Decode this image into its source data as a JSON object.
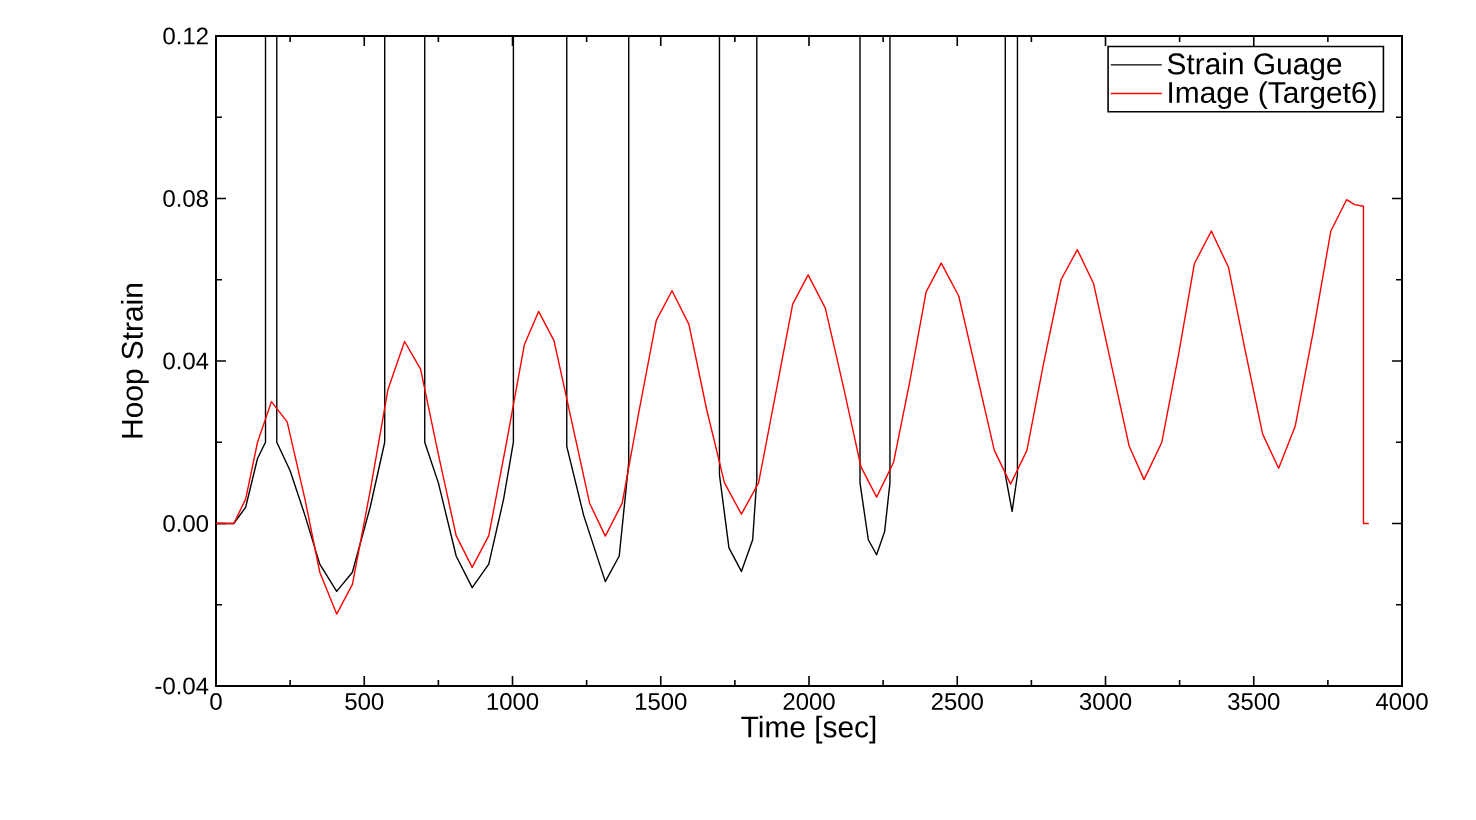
{
  "chart_data": {
    "type": "line",
    "xlabel": "Time [sec]",
    "ylabel": "Hoop Strain",
    "xlim": [
      0,
      4000
    ],
    "ylim": [
      -0.04,
      0.12
    ],
    "xticks": [
      0,
      500,
      1000,
      1500,
      2000,
      2500,
      3000,
      3500,
      4000
    ],
    "yticks": [
      {
        "value": -0.04,
        "label": "-0.04"
      },
      {
        "value": 0,
        "label": "0.00"
      },
      {
        "value": 0.04,
        "label": "0.04"
      },
      {
        "value": 0.08,
        "label": "0.08"
      },
      {
        "value": 0.12,
        "label": "0.12"
      }
    ],
    "grid": false,
    "legend": "top right",
    "marker": "none",
    "line_style": "solid",
    "series": [
      {
        "name": "Strain Guage",
        "color": "#000000",
        "x": [
          0,
          60,
          100,
          140,
          167,
          167,
          205,
          205,
          250,
          300,
          350,
          407,
          460,
          520,
          569,
          569,
          704,
          704,
          750,
          810,
          864,
          920,
          970,
          1003,
          1003,
          1183,
          1183,
          1240,
          1313,
          1360,
          1392,
          1392,
          1698,
          1698,
          1730,
          1772,
          1810,
          1824,
          1824,
          2172,
          2172,
          2200,
          2228,
          2255,
          2273,
          2273,
          2662,
          2662,
          2685,
          2703,
          2703
        ],
        "values": [
          0,
          0,
          0.004,
          0.016,
          0.02,
          0.12,
          0.12,
          0.02,
          0.013,
          0.002,
          -0.01,
          -0.0167,
          -0.012,
          0.004,
          0.02,
          0.12,
          0.12,
          0.02,
          0.01,
          -0.008,
          -0.0158,
          -0.01,
          0.006,
          0.02,
          0.12,
          0.12,
          0.019,
          0.002,
          -0.0143,
          -0.008,
          0.015,
          0.12,
          0.12,
          0.012,
          -0.006,
          -0.0118,
          -0.004,
          0.011,
          0.12,
          0.12,
          0.01,
          -0.004,
          -0.0077,
          -0.002,
          0.01,
          0.12,
          0.12,
          0.012,
          0.003,
          0.012,
          0.12
        ]
      },
      {
        "name": "Image (Target6)",
        "color": "#ff0000",
        "x": [
          0,
          60,
          100,
          140,
          187,
          240,
          300,
          350,
          407,
          460,
          520,
          580,
          636,
          690,
          750,
          810,
          864,
          920,
          980,
          1040,
          1088,
          1140,
          1200,
          1260,
          1313,
          1370,
          1425,
          1485,
          1538,
          1595,
          1655,
          1715,
          1772,
          1830,
          1885,
          1945,
          1997,
          2055,
          2115,
          2175,
          2228,
          2285,
          2340,
          2395,
          2446,
          2505,
          2565,
          2625,
          2680,
          2735,
          2790,
          2850,
          2905,
          2960,
          3020,
          3080,
          3130,
          3190,
          3245,
          3300,
          3357,
          3415,
          3470,
          3530,
          3584,
          3640,
          3700,
          3760,
          3813,
          3840,
          3870,
          3870,
          3888
        ],
        "values": [
          0,
          0,
          0.006,
          0.02,
          0.03,
          0.025,
          0.006,
          -0.012,
          -0.0223,
          -0.015,
          0.008,
          0.033,
          0.0448,
          0.038,
          0.017,
          -0.003,
          -0.0108,
          -0.003,
          0.02,
          0.044,
          0.0522,
          0.045,
          0.025,
          0.005,
          -0.0031,
          0.005,
          0.027,
          0.05,
          0.0573,
          0.049,
          0.028,
          0.01,
          0.0023,
          0.01,
          0.031,
          0.054,
          0.0612,
          0.053,
          0.034,
          0.014,
          0.0065,
          0.015,
          0.035,
          0.057,
          0.0641,
          0.056,
          0.037,
          0.018,
          0.0097,
          0.018,
          0.039,
          0.06,
          0.0674,
          0.059,
          0.039,
          0.019,
          0.0108,
          0.02,
          0.041,
          0.064,
          0.072,
          0.063,
          0.043,
          0.022,
          0.0136,
          0.024,
          0.047,
          0.072,
          0.0797,
          0.0785,
          0.0781,
          0,
          0
        ]
      }
    ]
  }
}
